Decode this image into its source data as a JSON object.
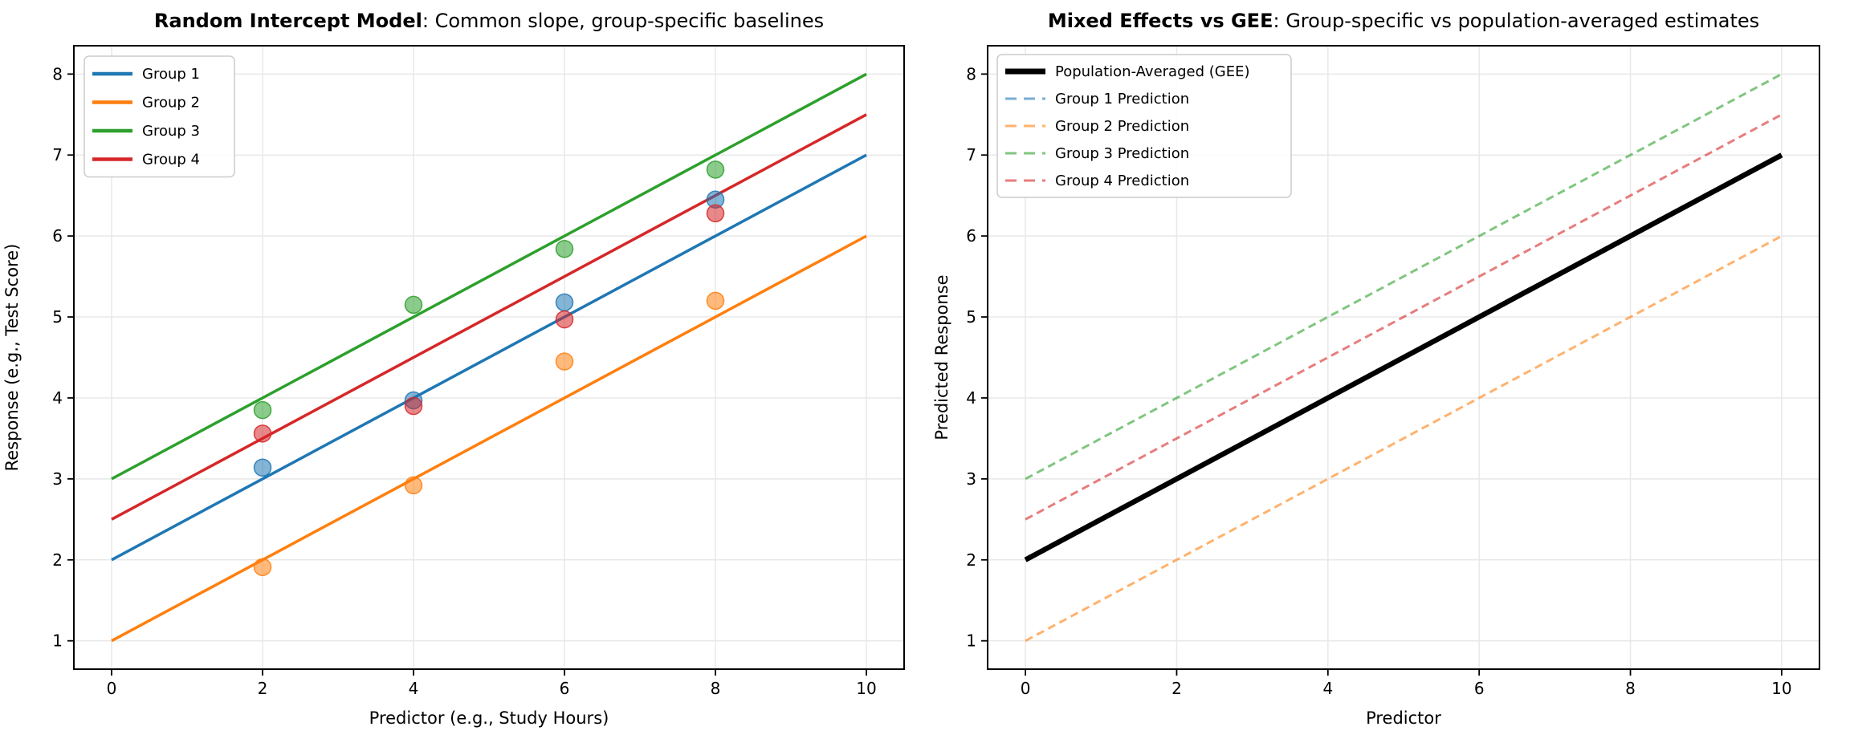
{
  "figure_background": "#ffffff",
  "grid_color": "#e8e8e8",
  "spine_color": "#000000",
  "chart_data": [
    {
      "type": "line+scatter",
      "title_bold": "Random Intercept Model",
      "title_rest": ": Common slope, group-specific baselines",
      "xlabel": "Predictor (e.g., Study Hours)",
      "ylabel": "Response (e.g., Test Score)",
      "xticks": [
        0,
        2,
        4,
        6,
        8,
        10
      ],
      "yticks": [
        1,
        2,
        3,
        4,
        5,
        6,
        7,
        8
      ],
      "xlim": [
        -0.5,
        10.5
      ],
      "ylim": [
        0.65,
        8.35
      ],
      "grid": true,
      "legend_position": "upper-left",
      "series": [
        {
          "name": "Group 1",
          "color": "#1f77b4",
          "dash": "solid",
          "line_width": 3.5,
          "line": {
            "x": [
              0,
              10
            ],
            "y": [
              2.0,
              7.0
            ]
          },
          "points": {
            "x": [
              2,
              4,
              6,
              8
            ],
            "y": [
              3.14,
              3.97,
              5.18,
              6.45
            ]
          }
        },
        {
          "name": "Group 2",
          "color": "#ff7f0e",
          "dash": "solid",
          "line_width": 3.5,
          "line": {
            "x": [
              0,
              10
            ],
            "y": [
              1.0,
              6.0
            ]
          },
          "points": {
            "x": [
              2,
              4,
              6,
              8
            ],
            "y": [
              1.91,
              2.92,
              4.45,
              5.2
            ]
          }
        },
        {
          "name": "Group 3",
          "color": "#2ca02c",
          "dash": "solid",
          "line_width": 3.5,
          "line": {
            "x": [
              0,
              10
            ],
            "y": [
              3.0,
              8.0
            ]
          },
          "points": {
            "x": [
              2,
              4,
              6,
              8
            ],
            "y": [
              3.85,
              5.15,
              5.84,
              6.82
            ]
          }
        },
        {
          "name": "Group 4",
          "color": "#d62728",
          "dash": "solid",
          "line_width": 3.5,
          "line": {
            "x": [
              0,
              10
            ],
            "y": [
              2.5,
              7.5
            ]
          },
          "points": {
            "x": [
              2,
              4,
              6,
              8
            ],
            "y": [
              3.56,
              3.9,
              4.97,
              6.28
            ]
          }
        }
      ],
      "legend_order": [
        0,
        1,
        2,
        3
      ]
    },
    {
      "type": "line",
      "title_bold": "Mixed Effects vs GEE",
      "title_rest": ": Group-specific vs population-averaged estimates",
      "xlabel": "Predictor",
      "ylabel": "Predicted Response",
      "xticks": [
        0,
        2,
        4,
        6,
        8,
        10
      ],
      "yticks": [
        1,
        2,
        3,
        4,
        5,
        6,
        7,
        8
      ],
      "xlim": [
        -0.5,
        10.5
      ],
      "ylim": [
        0.65,
        8.35
      ],
      "grid": true,
      "legend_position": "upper-left",
      "series": [
        {
          "name": "Group 1 Prediction",
          "color": "#1f77b4",
          "dash": "dashed",
          "opacity": 0.6,
          "line_width": 3,
          "line": {
            "x": [
              0,
              10
            ],
            "y": [
              2.0,
              7.0
            ]
          }
        },
        {
          "name": "Group 2 Prediction",
          "color": "#ff7f0e",
          "dash": "dashed",
          "opacity": 0.6,
          "line_width": 3,
          "line": {
            "x": [
              0,
              10
            ],
            "y": [
              1.0,
              6.0
            ]
          }
        },
        {
          "name": "Group 3 Prediction",
          "color": "#2ca02c",
          "dash": "dashed",
          "opacity": 0.6,
          "line_width": 3,
          "line": {
            "x": [
              0,
              10
            ],
            "y": [
              3.0,
              8.0
            ]
          }
        },
        {
          "name": "Group 4 Prediction",
          "color": "#d62728",
          "dash": "dashed",
          "opacity": 0.6,
          "line_width": 3,
          "line": {
            "x": [
              0,
              10
            ],
            "y": [
              2.5,
              7.5
            ]
          }
        },
        {
          "name": "Population-Averaged (GEE)",
          "color": "#000000",
          "dash": "solid",
          "opacity": 1,
          "line_width": 6.5,
          "line": {
            "x": [
              0,
              10
            ],
            "y": [
              2.0,
              7.0
            ]
          }
        }
      ],
      "legend_order": [
        4,
        0,
        1,
        2,
        3
      ]
    }
  ]
}
